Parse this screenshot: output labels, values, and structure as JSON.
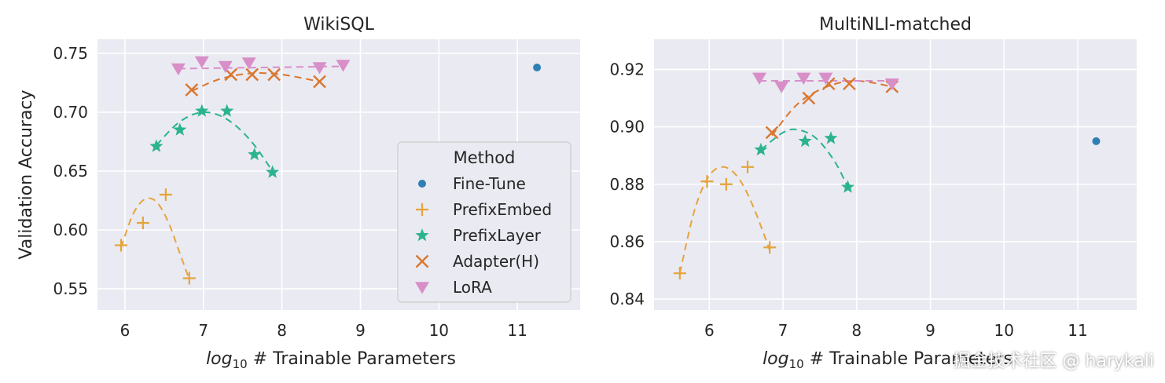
{
  "colors": {
    "fine_tune": "#2f7fb5",
    "prefix_embed": "#e5a43b",
    "prefix_layer": "#2bb38f",
    "adapter": "#d9772f",
    "lora": "#d88fc8",
    "panel_bg": "#eaeaf2",
    "grid": "#ffffff"
  },
  "legend": {
    "title": "Method",
    "entries": [
      "Fine-Tune",
      "PrefixEmbed",
      "PrefixLayer",
      "Adapter(H)",
      "LoRA"
    ]
  },
  "chart_data": [
    {
      "type": "scatter",
      "title": "WikiSQL",
      "xlabel_prefix": "log",
      "xlabel_subscript": "10",
      "xlabel_suffix": " # Trainable Parameters",
      "ylabel": "Validation Accuracy",
      "xlim": [
        5.65,
        11.8
      ],
      "ylim": [
        0.532,
        0.762
      ],
      "xticks": [
        6,
        7,
        8,
        9,
        10,
        11
      ],
      "yticks": [
        0.55,
        0.6,
        0.65,
        0.7,
        0.75
      ],
      "ytick_labels": [
        "0.55",
        "0.60",
        "0.65",
        "0.70",
        "0.75"
      ],
      "series": [
        {
          "name": "Fine-Tune",
          "marker": "dot",
          "x": [
            11.25
          ],
          "y": [
            0.738
          ]
        },
        {
          "name": "PrefixEmbed",
          "marker": "plus",
          "x": [
            5.95,
            6.23,
            6.52,
            6.82
          ],
          "y": [
            0.587,
            0.606,
            0.63,
            0.559
          ]
        },
        {
          "name": "PrefixLayer",
          "marker": "star",
          "x": [
            6.4,
            6.7,
            6.98,
            7.3,
            7.65,
            7.88
          ],
          "y": [
            0.671,
            0.685,
            0.701,
            0.701,
            0.664,
            0.649
          ]
        },
        {
          "name": "Adapter(H)",
          "marker": "x",
          "x": [
            6.85,
            7.35,
            7.62,
            7.9,
            8.48
          ],
          "y": [
            0.719,
            0.732,
            0.732,
            0.732,
            0.726
          ]
        },
        {
          "name": "LoRA",
          "marker": "tri",
          "x": [
            6.68,
            6.98,
            7.28,
            7.58,
            8.48,
            8.78
          ],
          "y": [
            0.737,
            0.743,
            0.739,
            0.742,
            0.738,
            0.74
          ]
        }
      ],
      "fits": [
        {
          "series": "PrefixEmbed",
          "x": [
            5.95,
            6.1,
            6.25,
            6.4,
            6.55,
            6.7,
            6.82
          ],
          "y": [
            0.585,
            0.613,
            0.626,
            0.624,
            0.607,
            0.58,
            0.558
          ]
        },
        {
          "series": "PrefixLayer",
          "x": [
            6.4,
            6.7,
            7.0,
            7.3,
            7.6,
            7.88
          ],
          "y": [
            0.672,
            0.692,
            0.7,
            0.694,
            0.676,
            0.65
          ]
        },
        {
          "series": "Adapter(H)",
          "x": [
            6.85,
            7.2,
            7.6,
            8.0,
            8.48
          ],
          "y": [
            0.718,
            0.728,
            0.733,
            0.732,
            0.726
          ]
        },
        {
          "series": "LoRA",
          "x": [
            6.68,
            8.78
          ],
          "y": [
            0.737,
            0.739
          ]
        }
      ]
    },
    {
      "type": "scatter",
      "title": "MultiNLI-matched",
      "xlabel_prefix": "log",
      "xlabel_subscript": "10",
      "xlabel_suffix": " # Trainable Parameters",
      "ylabel": "",
      "xlim": [
        5.25,
        11.8
      ],
      "ylim": [
        0.8362,
        0.9305
      ],
      "xticks": [
        6,
        7,
        8,
        9,
        10,
        11
      ],
      "yticks": [
        0.84,
        0.86,
        0.88,
        0.9,
        0.92
      ],
      "ytick_labels": [
        "0.84",
        "0.86",
        "0.88",
        "0.90",
        "0.92"
      ],
      "series": [
        {
          "name": "Fine-Tune",
          "marker": "dot",
          "x": [
            11.25
          ],
          "y": [
            0.895
          ]
        },
        {
          "name": "PrefixEmbed",
          "marker": "plus",
          "x": [
            5.6,
            5.97,
            6.23,
            6.52,
            6.82
          ],
          "y": [
            0.849,
            0.881,
            0.88,
            0.886,
            0.858
          ]
        },
        {
          "name": "PrefixLayer",
          "marker": "star",
          "x": [
            6.7,
            7.3,
            7.65,
            7.88
          ],
          "y": [
            0.892,
            0.895,
            0.896,
            0.879
          ]
        },
        {
          "name": "Adapter(H)",
          "marker": "x",
          "x": [
            6.85,
            7.35,
            7.62,
            7.9,
            8.48
          ],
          "y": [
            0.898,
            0.91,
            0.915,
            0.915,
            0.914
          ]
        },
        {
          "name": "LoRA",
          "marker": "tri",
          "x": [
            6.68,
            6.98,
            7.28,
            7.58,
            8.48
          ],
          "y": [
            0.917,
            0.914,
            0.917,
            0.917,
            0.915
          ]
        }
      ],
      "fits": [
        {
          "series": "PrefixEmbed",
          "x": [
            5.6,
            5.8,
            6.0,
            6.2,
            6.4,
            6.6,
            6.82
          ],
          "y": [
            0.849,
            0.871,
            0.883,
            0.886,
            0.882,
            0.872,
            0.857
          ]
        },
        {
          "series": "PrefixLayer",
          "x": [
            6.7,
            7.0,
            7.2,
            7.45,
            7.7,
            7.88
          ],
          "y": [
            0.892,
            0.898,
            0.899,
            0.896,
            0.888,
            0.879
          ]
        },
        {
          "series": "Adapter(H)",
          "x": [
            6.85,
            7.2,
            7.6,
            8.0,
            8.48
          ],
          "y": [
            0.897,
            0.908,
            0.914,
            0.916,
            0.914
          ]
        },
        {
          "series": "LoRA",
          "x": [
            6.68,
            8.48
          ],
          "y": [
            0.916,
            0.916
          ]
        }
      ]
    }
  ],
  "watermark": "掘金技术社区 @ harykali"
}
